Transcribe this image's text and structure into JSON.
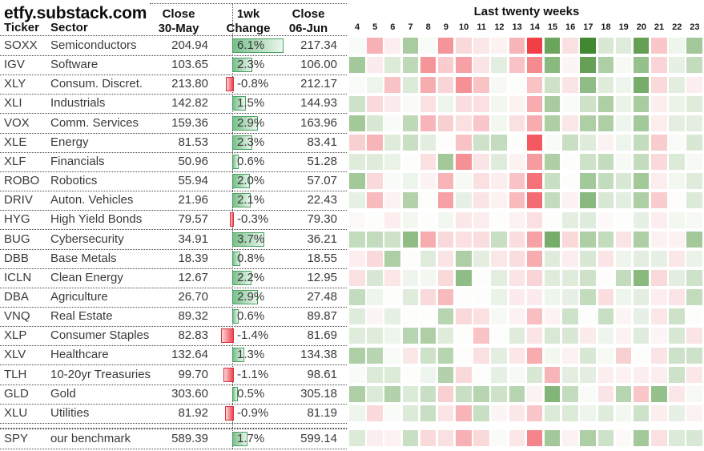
{
  "title": "etfy.substack.com",
  "table": {
    "col_ticker": "Ticker",
    "col_sector": "Sector",
    "col_close1": "Close\n30-May",
    "col_change": "1wk\nChange",
    "col_close2": "Close\n06-Jun"
  },
  "heatmap": {
    "title": "Last twenty weeks"
  },
  "colors": {
    "positive_strong": "#38831f",
    "negative_strong": "#f23138",
    "bar_green_fill": "#79bf8c",
    "bar_green_border": "#47a061",
    "bar_red_fill": "#ee4450",
    "bar_red_border": "#d8323e",
    "grid_line": "#444444",
    "text": "#3a3a3a"
  },
  "chart_data": {
    "type": "heatmap",
    "title": "Last twenty weeks",
    "x_labels": [
      "4",
      "5",
      "6",
      "7",
      "8",
      "9",
      "10",
      "11",
      "12",
      "13",
      "14",
      "15",
      "16",
      "17",
      "18",
      "19",
      "20",
      "21",
      "22",
      "23"
    ],
    "color_scale": {
      "min": -4,
      "max": 4,
      "negative": "#f23138",
      "zero": "#fdfdfc",
      "positive": "#38831f"
    },
    "rows": [
      {
        "ticker": "SOXX",
        "sector": "Semiconductors",
        "close1": "204.94",
        "change": 6.1,
        "change_label": "6.1%",
        "close2": "217.34",
        "weekly": [
          0.1,
          -1.9,
          -0.4,
          1.9,
          0.1,
          -2.4,
          -1.0,
          -0.6,
          -0.3,
          -1.8,
          -3.8,
          2.9,
          -0.8,
          3.8,
          1.0,
          0.8,
          3.0,
          -1.4,
          0.4,
          2.0
        ]
      },
      {
        "ticker": "IGV",
        "sector": "Software",
        "close1": "103.65",
        "change": 2.3,
        "change_label": "2.3%",
        "close2": "106.00",
        "weekly": [
          2.0,
          -0.5,
          0.9,
          1.5,
          -2.4,
          -1.3,
          -2.2,
          -0.7,
          0.7,
          -1.5,
          -2.6,
          2.4,
          -0.2,
          3.0,
          1.8,
          0.2,
          2.2,
          -1.1,
          0.6,
          1.4
        ]
      },
      {
        "ticker": "XLY",
        "sector": "Consum. Discret.",
        "close1": "213.80",
        "change": -0.8,
        "change_label": "-0.8%",
        "close2": "212.17",
        "weekly": [
          0.1,
          0.4,
          -1.5,
          0.9,
          -2.0,
          -1.1,
          -2.5,
          -1.5,
          0.2,
          0.0,
          -1.5,
          1.2,
          -0.7,
          2.3,
          0.8,
          0.4,
          2.7,
          -1.0,
          0.7,
          -0.4
        ]
      },
      {
        "ticker": "XLI",
        "sector": "Industrials",
        "close1": "142.82",
        "change": 1.5,
        "change_label": "1.5%",
        "close2": "144.93",
        "weekly": [
          1.2,
          -1.0,
          -0.5,
          0.1,
          -0.8,
          0.4,
          -0.9,
          -0.8,
          0.3,
          -0.3,
          -2.0,
          1.9,
          0.1,
          1.2,
          1.8,
          0.5,
          1.9,
          -0.4,
          0.5,
          0.8
        ]
      },
      {
        "ticker": "VOX",
        "sector": "Comm. Services",
        "close1": "159.36",
        "change": 2.9,
        "change_label": "2.9%",
        "close2": "163.96",
        "weekly": [
          2.0,
          1.0,
          0.1,
          1.5,
          -1.8,
          -1.2,
          -0.8,
          -1.4,
          0.3,
          -0.8,
          -2.0,
          1.8,
          -0.6,
          1.8,
          1.8,
          0.4,
          2.0,
          -0.4,
          0.7,
          0.7
        ]
      },
      {
        "ticker": "XLE",
        "sector": "Energy",
        "close1": "81.53",
        "change": 2.3,
        "change_label": "2.3%",
        "close2": "83.41",
        "weekly": [
          -1.2,
          -1.8,
          0.8,
          1.3,
          0.7,
          0.0,
          -1.5,
          1.2,
          1.4,
          0.0,
          -3.4,
          0.1,
          1.3,
          0.8,
          -0.3,
          0.4,
          1.4,
          -1.3,
          0.1,
          1.0
        ]
      },
      {
        "ticker": "XLF",
        "sector": "Financials",
        "close1": "50.96",
        "change": 0.6,
        "change_label": "0.6%",
        "close2": "51.28",
        "weekly": [
          0.8,
          0.8,
          0.5,
          0.0,
          -0.8,
          2.0,
          -2.5,
          -0.7,
          0.8,
          -0.3,
          -2.3,
          1.8,
          0.0,
          1.2,
          1.4,
          0.2,
          1.4,
          -1.0,
          0.9,
          0.2
        ]
      },
      {
        "ticker": "ROBO",
        "sector": "Robotics",
        "close1": "55.94",
        "change": 2.0,
        "change_label": "2.0%",
        "close2": "57.07",
        "weekly": [
          2.0,
          -1.0,
          0.1,
          0.4,
          -0.3,
          -1.8,
          0.2,
          -0.8,
          -0.4,
          -1.5,
          -3.0,
          1.3,
          0.0,
          2.0,
          1.4,
          1.0,
          2.0,
          -0.4,
          0.3,
          0.8
        ]
      },
      {
        "ticker": "DRIV",
        "sector": "Auton. Vehicles",
        "close1": "21.96",
        "change": 2.1,
        "change_label": "2.1%",
        "close2": "22.43",
        "weekly": [
          0.6,
          -1.7,
          -0.3,
          1.7,
          0.0,
          -2.2,
          0.6,
          -0.7,
          -0.3,
          -1.7,
          -3.1,
          1.4,
          -0.3,
          2.4,
          1.0,
          0.7,
          1.8,
          -1.3,
          0.0,
          0.9
        ]
      },
      {
        "ticker": "HYG",
        "sector": "High Yield Bonds",
        "close1": "79.57",
        "change": -0.3,
        "change_label": "-0.3%",
        "close2": "79.30",
        "weekly": [
          -0.1,
          0.0,
          -0.4,
          0.3,
          0.0,
          0.3,
          -0.6,
          -0.4,
          0.0,
          -0.3,
          -0.8,
          0.0,
          0.7,
          0.8,
          -0.1,
          0.0,
          0.6,
          -0.4,
          0.3,
          0.2
        ]
      },
      {
        "ticker": "BUG",
        "sector": "Cybersecurity",
        "close1": "34.91",
        "change": 3.7,
        "change_label": "3.7%",
        "close2": "36.21",
        "weekly": [
          1.4,
          1.4,
          1.2,
          2.3,
          -2.0,
          -1.0,
          -0.8,
          -0.9,
          1.3,
          -0.9,
          -2.2,
          2.7,
          -1.0,
          1.8,
          1.4,
          -0.7,
          1.8,
          -0.3,
          -0.3,
          2.0
        ]
      },
      {
        "ticker": "DBB",
        "sector": "Base Metals",
        "close1": "18.39",
        "change": 0.8,
        "change_label": "0.8%",
        "close2": "18.55",
        "weekly": [
          -0.4,
          -1.0,
          1.8,
          0.0,
          0.8,
          -0.7,
          1.8,
          0.7,
          -0.6,
          -0.9,
          -2.0,
          0.8,
          -0.4,
          1.0,
          -0.7,
          0.4,
          0.7,
          0.6,
          -0.6,
          0.5
        ]
      },
      {
        "ticker": "ICLN",
        "sector": "Clean Energy",
        "close1": "12.67",
        "change": 2.2,
        "change_label": "2.2%",
        "close2": "12.95",
        "weekly": [
          -0.8,
          1.0,
          -0.6,
          0.4,
          0.3,
          -1.0,
          2.3,
          0.0,
          0.7,
          -0.7,
          -1.1,
          0.8,
          0.8,
          1.2,
          0.0,
          1.4,
          2.4,
          -1.0,
          0.7,
          1.2
        ]
      },
      {
        "ticker": "DBA",
        "sector": "Agriculture",
        "close1": "26.70",
        "change": 2.9,
        "change_label": "2.9%",
        "close2": "27.48",
        "weekly": [
          1.4,
          0.4,
          0.0,
          0.8,
          -1.0,
          -1.7,
          0.0,
          0.0,
          0.5,
          -0.5,
          -0.5,
          0.4,
          0.6,
          1.4,
          -0.9,
          0.4,
          0.7,
          -0.4,
          -0.7,
          1.4
        ]
      },
      {
        "ticker": "VNQ",
        "sector": "Real Estate",
        "close1": "89.32",
        "change": 0.6,
        "change_label": "0.6%",
        "close2": "89.87",
        "weekly": [
          0.8,
          -0.2,
          0.6,
          0.0,
          0.0,
          1.6,
          -1.0,
          -0.8,
          0.2,
          -0.3,
          -1.6,
          -0.3,
          1.2,
          0.0,
          1.3,
          -0.2,
          0.6,
          -0.6,
          1.2,
          0.0
        ]
      },
      {
        "ticker": "XLP",
        "sector": "Consumer Staples",
        "close1": "82.83",
        "change": -1.4,
        "change_label": "-1.4%",
        "close2": "81.69",
        "weekly": [
          0.8,
          0.8,
          0.4,
          1.6,
          1.8,
          0.8,
          0.0,
          -1.5,
          0.0,
          0.8,
          -0.7,
          1.0,
          1.0,
          -0.5,
          0.4,
          -0.3,
          0.8,
          -0.2,
          1.0,
          -0.7
        ]
      },
      {
        "ticker": "XLV",
        "sector": "Healthcare",
        "close1": "132.64",
        "change": 1.3,
        "change_label": "1.3%",
        "close2": "134.38",
        "weekly": [
          1.8,
          1.6,
          0.1,
          -0.6,
          1.2,
          1.6,
          0.0,
          -0.8,
          0.7,
          -0.6,
          -2.0,
          0.3,
          -0.3,
          1.0,
          0.2,
          -1.2,
          0.0,
          -0.7,
          1.2,
          1.2
        ]
      },
      {
        "ticker": "TLH",
        "sector": "10-20yr Treasuries",
        "close1": "99.70",
        "change": -1.1,
        "change_label": "-1.1%",
        "close2": "98.61",
        "weekly": [
          0.1,
          0.9,
          0.9,
          0.0,
          0.4,
          1.7,
          -1.0,
          0.0,
          0.6,
          0.2,
          1.0,
          -1.8,
          0.7,
          0.7,
          -0.4,
          -0.3,
          -0.4,
          -0.4,
          1.2,
          -0.6
        ]
      },
      {
        "ticker": "GLD",
        "sector": "Gold",
        "close1": "303.60",
        "change": 0.5,
        "change_label": "0.5%",
        "close2": "305.18",
        "weekly": [
          1.8,
          0.9,
          1.7,
          0.9,
          1.3,
          -1.2,
          1.3,
          1.6,
          1.2,
          1.6,
          -0.3,
          2.5,
          1.4,
          0.1,
          -0.7,
          1.6,
          -1.4,
          2.2,
          -0.6,
          0.2
        ]
      },
      {
        "ticker": "XLU",
        "sector": "Utilities",
        "close1": "81.92",
        "change": -0.9,
        "change_label": "-0.9%",
        "close2": "81.19",
        "weekly": [
          0.4,
          -1.0,
          0.1,
          0.9,
          1.3,
          -0.7,
          -1.8,
          1.3,
          -0.2,
          -0.6,
          -1.4,
          0.9,
          0.9,
          0.4,
          0.8,
          0.3,
          1.2,
          -0.4,
          0.6,
          -0.3
        ]
      },
      {
        "ticker": "SPY",
        "sector": "our benchmark",
        "close1": "589.39",
        "change": 1.7,
        "change_label": "1.7%",
        "close2": "599.14",
        "weekly": [
          0.9,
          -0.4,
          -0.3,
          1.3,
          -1.0,
          -0.8,
          -1.9,
          -1.0,
          0.1,
          -0.6,
          -2.7,
          2.0,
          -0.3,
          1.8,
          1.2,
          -0.1,
          2.0,
          -0.8,
          0.9,
          1.0
        ]
      }
    ]
  }
}
